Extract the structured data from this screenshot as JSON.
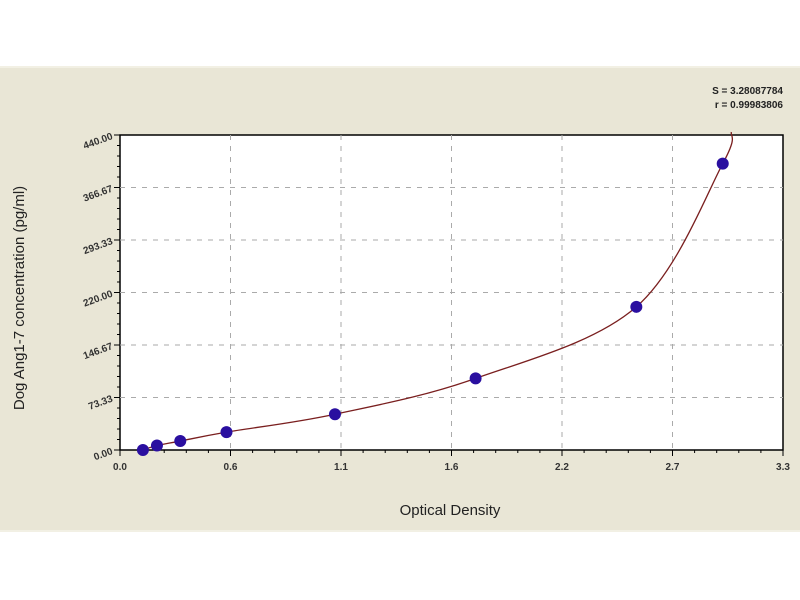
{
  "chart_data": {
    "type": "scatter",
    "xlabel": "Optical Density",
    "ylabel": "Dog Ang1-7 concentration (pg/ml)",
    "xlim": [
      0,
      3.3
    ],
    "ylim": [
      0,
      440
    ],
    "x_ticks": [
      0,
      0.55,
      1.1,
      1.65,
      2.2,
      2.75,
      3.3
    ],
    "x_tick_labels": [
      "0.0",
      "0.6",
      "1.1",
      "1.6",
      "2.2",
      "2.7",
      "3.3"
    ],
    "y_ticks": [
      0,
      73.33,
      146.67,
      220,
      293.33,
      366.67,
      440
    ],
    "y_tick_labels": [
      "0.00",
      "73.33",
      "146.67",
      "220.00",
      "293.33",
      "366.67",
      "440.00"
    ],
    "grid": true,
    "points": {
      "x": [
        0.114,
        0.184,
        0.3,
        0.53,
        1.07,
        1.77,
        2.57,
        3.0
      ],
      "y": [
        0,
        6.25,
        12.5,
        25,
        50,
        100,
        200,
        400
      ]
    },
    "fit_curve": true,
    "annotations": [
      "S = 3.28087784",
      "r = 0.99983806"
    ],
    "colors": {
      "points": "#2a0fa0",
      "curve": "#7a1f1f",
      "background": "#e9e6d6"
    }
  }
}
